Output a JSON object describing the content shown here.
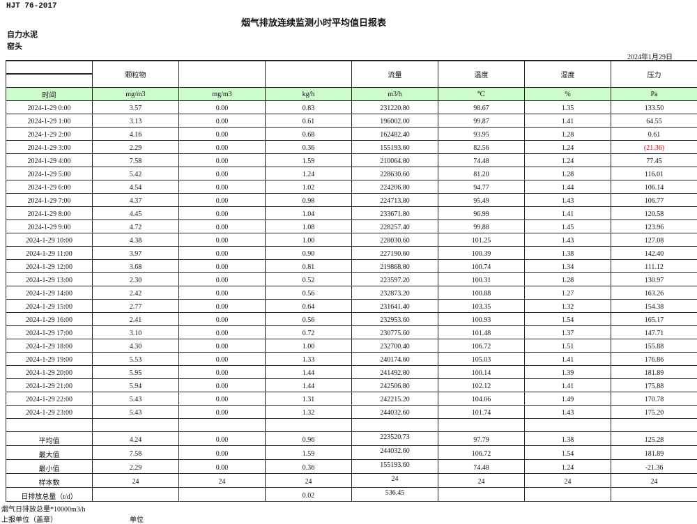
{
  "standard": "HJT  76-2017",
  "title": "烟气排放连续监测小时平均值日报表",
  "company": "自力水泥",
  "site": "窑头",
  "report_date": "2024年1月29日",
  "headers": [
    "",
    "颗粒物",
    "",
    "",
    "流量",
    "温度",
    "湿度",
    "压力"
  ],
  "units": [
    "时间",
    "mg/m3",
    "mg/m3",
    "kg/h",
    "m3/h",
    "℃",
    "%",
    "Pa"
  ],
  "negative_color": "#e00000",
  "rows": [
    [
      "2024-1-29 0:00",
      "3.57",
      "0.00",
      "0.83",
      "231220.80",
      "98.67",
      "1.35",
      "133.50"
    ],
    [
      "2024-1-29 1:00",
      "3.13",
      "0.00",
      "0.61",
      "196002.00",
      "99.87",
      "1.41",
      "64.55"
    ],
    [
      "2024-1-29 2:00",
      "4.16",
      "0.00",
      "0.68",
      "162482.40",
      "93.95",
      "1.28",
      "0.61"
    ],
    [
      "2024-1-29 3:00",
      "2.29",
      "0.00",
      "0.36",
      "155193.60",
      "82.56",
      "1.24",
      "(21.36)"
    ],
    [
      "2024-1-29 4:00",
      "7.58",
      "0.00",
      "1.59",
      "210064.80",
      "74.48",
      "1.24",
      "77.45"
    ],
    [
      "2024-1-29 5:00",
      "5.42",
      "0.00",
      "1.24",
      "228630.60",
      "81.20",
      "1.28",
      "116.01"
    ],
    [
      "2024-1-29 6:00",
      "4.54",
      "0.00",
      "1.02",
      "224206.80",
      "94.77",
      "1.44",
      "106.14"
    ],
    [
      "2024-1-29 7:00",
      "4.37",
      "0.00",
      "0.98",
      "224713.80",
      "95.49",
      "1.43",
      "106.77"
    ],
    [
      "2024-1-29 8:00",
      "4.45",
      "0.00",
      "1.04",
      "233671.80",
      "96.99",
      "1.41",
      "120.58"
    ],
    [
      "2024-1-29 9:00",
      "4.72",
      "0.00",
      "1.08",
      "228257.40",
      "99.88",
      "1.45",
      "123.96"
    ],
    [
      "2024-1-29 10:00",
      "4.38",
      "0.00",
      "1.00",
      "228030.60",
      "101.25",
      "1.43",
      "127.08"
    ],
    [
      "2024-1-29 11:00",
      "3.97",
      "0.00",
      "0.90",
      "227190.60",
      "100.39",
      "1.38",
      "142.40"
    ],
    [
      "2024-1-29 12:00",
      "3.68",
      "0.00",
      "0.81",
      "219868.80",
      "100.74",
      "1.34",
      "111.12"
    ],
    [
      "2024-1-29 13:00",
      "2.30",
      "0.00",
      "0.52",
      "223597.20",
      "100.31",
      "1.28",
      "130.97"
    ],
    [
      "2024-1-29 14:00",
      "2.42",
      "0.00",
      "0.56",
      "232873.20",
      "100.88",
      "1.27",
      "163.26"
    ],
    [
      "2024-1-29 15:00",
      "2.77",
      "0.00",
      "0.64",
      "231641.40",
      "103.35",
      "1.32",
      "154.38"
    ],
    [
      "2024-1-29 16:00",
      "2.41",
      "0.00",
      "0.56",
      "232953.60",
      "100.93",
      "1.54",
      "165.17"
    ],
    [
      "2024-1-29 17:00",
      "3.10",
      "0.00",
      "0.72",
      "230775.60",
      "101.48",
      "1.37",
      "147.71"
    ],
    [
      "2024-1-29 18:00",
      "4.30",
      "0.00",
      "1.00",
      "232700.40",
      "106.72",
      "1.51",
      "155.88"
    ],
    [
      "2024-1-29 19:00",
      "5.53",
      "0.00",
      "1.33",
      "240174.60",
      "105.03",
      "1.41",
      "176.86"
    ],
    [
      "2024-1-29 20:00",
      "5.95",
      "0.00",
      "1.44",
      "241492.80",
      "100.14",
      "1.39",
      "181.89"
    ],
    [
      "2024-1-29 21:00",
      "5.94",
      "0.00",
      "1.44",
      "242506.80",
      "102.12",
      "1.41",
      "175.88"
    ],
    [
      "2024-1-29 22:00",
      "5.43",
      "0.00",
      "1.31",
      "242215.20",
      "104.06",
      "1.49",
      "170.78"
    ],
    [
      "2024-1-29 23:00",
      "5.43",
      "0.00",
      "1.32",
      "244032.60",
      "101.74",
      "1.43",
      "175.20"
    ]
  ],
  "summary": [
    [
      "平均值",
      "4.24",
      "0.00",
      "0.96",
      "223520.73",
      "97.79",
      "1.38",
      "125.28"
    ],
    [
      "最大值",
      "7.58",
      "0.00",
      "1.59",
      "244032.60",
      "106.72",
      "1.54",
      "181.89"
    ],
    [
      "最小值",
      "2.29",
      "0.00",
      "0.36",
      "155193.60",
      "74.48",
      "1.24",
      "-21.36"
    ],
    [
      "样本数",
      "24",
      "24",
      "24",
      "24",
      "24",
      "24",
      "24"
    ],
    [
      "日排放总量（t/d）",
      "",
      "",
      "0.02",
      "536.45",
      "",
      "",
      ""
    ]
  ],
  "footer": {
    "note": "烟气日排放总量*10000m3/h",
    "reporter": "上报单位（盖章）",
    "unit_label": "单位"
  }
}
